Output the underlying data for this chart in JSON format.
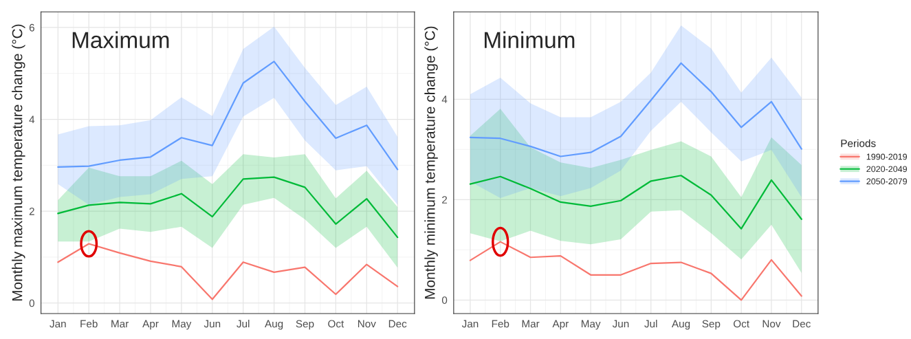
{
  "chart_data": [
    {
      "type": "line",
      "title": "Maximum",
      "ylabel": "Monthly maximum temperature change (°C)",
      "categories": [
        "Jan",
        "Feb",
        "Mar",
        "Apr",
        "May",
        "Jun",
        "Jul",
        "Aug",
        "Sep",
        "Oct",
        "Nov",
        "Dec"
      ],
      "ylim": [
        -0.23,
        6.34
      ],
      "yticks": [
        0,
        2,
        4,
        6
      ],
      "grid": true,
      "legend": false,
      "series": [
        {
          "color": "#f8766d",
          "values": [
            0.89,
            1.29,
            1.09,
            0.91,
            0.79,
            0.08,
            0.89,
            0.67,
            0.78,
            0.19,
            0.84,
            0.36
          ]
        },
        {
          "color": "#00ba38",
          "values": [
            1.95,
            2.13,
            2.19,
            2.16,
            2.38,
            1.88,
            2.7,
            2.74,
            2.52,
            1.72,
            2.27,
            1.43
          ],
          "lower": [
            1.34,
            1.34,
            1.62,
            1.55,
            1.66,
            1.2,
            2.14,
            2.29,
            1.82,
            1.2,
            1.66,
            0.77
          ],
          "upper": [
            2.24,
            2.95,
            2.76,
            2.76,
            3.1,
            2.59,
            3.24,
            3.17,
            3.24,
            2.28,
            2.88,
            2.09
          ]
        },
        {
          "color": "#619cff",
          "values": [
            2.96,
            2.98,
            3.11,
            3.18,
            3.6,
            3.43,
            4.79,
            5.26,
            4.39,
            3.59,
            3.87,
            2.91
          ],
          "lower": [
            2.59,
            2.14,
            2.31,
            2.37,
            2.7,
            2.76,
            4.06,
            4.47,
            3.54,
            2.89,
            2.98,
            2.14
          ],
          "upper": [
            3.67,
            3.85,
            3.87,
            3.98,
            4.48,
            4.07,
            5.53,
            6.02,
            5.12,
            4.31,
            4.71,
            3.62
          ]
        }
      ]
    },
    {
      "type": "line",
      "title": "Minimum",
      "ylabel": "Monthly minimum temperature change (°C)",
      "legend_title": "Periods",
      "categories": [
        "Jan",
        "Feb",
        "Mar",
        "Apr",
        "May",
        "Jun",
        "Jul",
        "Aug",
        "Sep",
        "Oct",
        "Nov",
        "Dec"
      ],
      "ylim": [
        -0.27,
        5.74
      ],
      "yticks": [
        0,
        2,
        4
      ],
      "grid": true,
      "legend": "right",
      "series": [
        {
          "name": "1990-2019",
          "color": "#f8766d",
          "values": [
            0.79,
            1.16,
            0.85,
            0.88,
            0.5,
            0.5,
            0.73,
            0.75,
            0.53,
            0.0,
            0.8,
            0.08
          ]
        },
        {
          "name": "2020-2049",
          "color": "#00ba38",
          "values": [
            2.31,
            2.46,
            2.22,
            1.95,
            1.87,
            1.98,
            2.37,
            2.48,
            2.09,
            1.42,
            2.39,
            1.61
          ],
          "lower": [
            1.33,
            1.17,
            1.38,
            1.18,
            1.11,
            1.21,
            1.76,
            1.79,
            1.33,
            0.81,
            1.5,
            0.54
          ],
          "upper": [
            3.27,
            3.81,
            3.04,
            2.74,
            2.63,
            2.79,
            2.99,
            3.16,
            2.86,
            2.05,
            3.24,
            2.69
          ]
        },
        {
          "name": "2050-2079",
          "color": "#619cff",
          "values": [
            3.24,
            3.22,
            3.06,
            2.86,
            2.94,
            3.26,
            3.98,
            4.72,
            4.15,
            3.44,
            3.95,
            3.01
          ],
          "lower": [
            2.36,
            2.03,
            2.23,
            2.07,
            2.23,
            2.58,
            3.37,
            3.95,
            3.34,
            2.76,
            2.99,
            2.05
          ],
          "upper": [
            4.1,
            4.43,
            3.92,
            3.64,
            3.64,
            3.95,
            4.53,
            5.47,
            5.01,
            4.13,
            4.83,
            4.03
          ]
        }
      ]
    }
  ]
}
